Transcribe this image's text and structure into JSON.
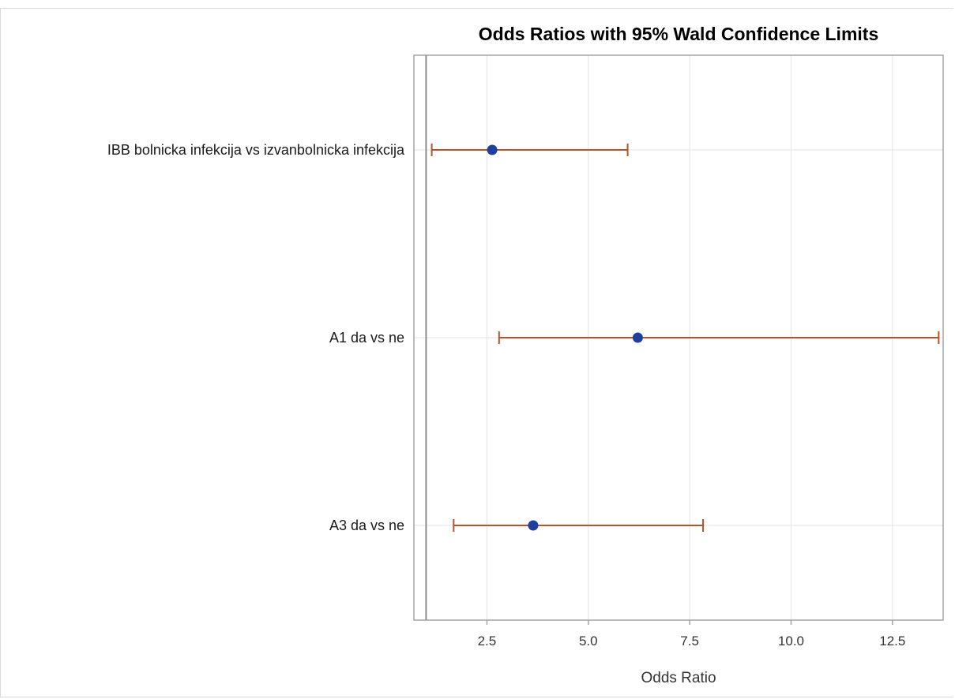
{
  "chart_data": {
    "type": "forest",
    "title": "Odds Ratios with 95% Wald Confidence Limits",
    "xlabel": "Odds Ratio",
    "ylabel": "",
    "xlim": [
      0.7,
      13.75
    ],
    "xticks": [
      2.5,
      5.0,
      7.5,
      10.0,
      12.5
    ],
    "xtick_labels": [
      "2.5",
      "5.0",
      "7.5",
      "10.0",
      "12.5"
    ],
    "reference_line": 1.0,
    "grid": true,
    "colors": {
      "point": "#1f3f9e",
      "interval": "#b5532a",
      "grid": "#e3e3e3",
      "axis": "#a6a6a6",
      "reference": "#8c8c8c"
    },
    "categories": [
      "IBB bolnicka infekcija vs izvanbolnicka infekcija",
      "A1 da vs ne",
      "A3 da vs ne"
    ],
    "estimates": [
      2.63,
      6.22,
      3.64
    ],
    "lower": [
      1.14,
      2.8,
      1.68
    ],
    "upper": [
      5.97,
      13.64,
      7.83
    ]
  }
}
